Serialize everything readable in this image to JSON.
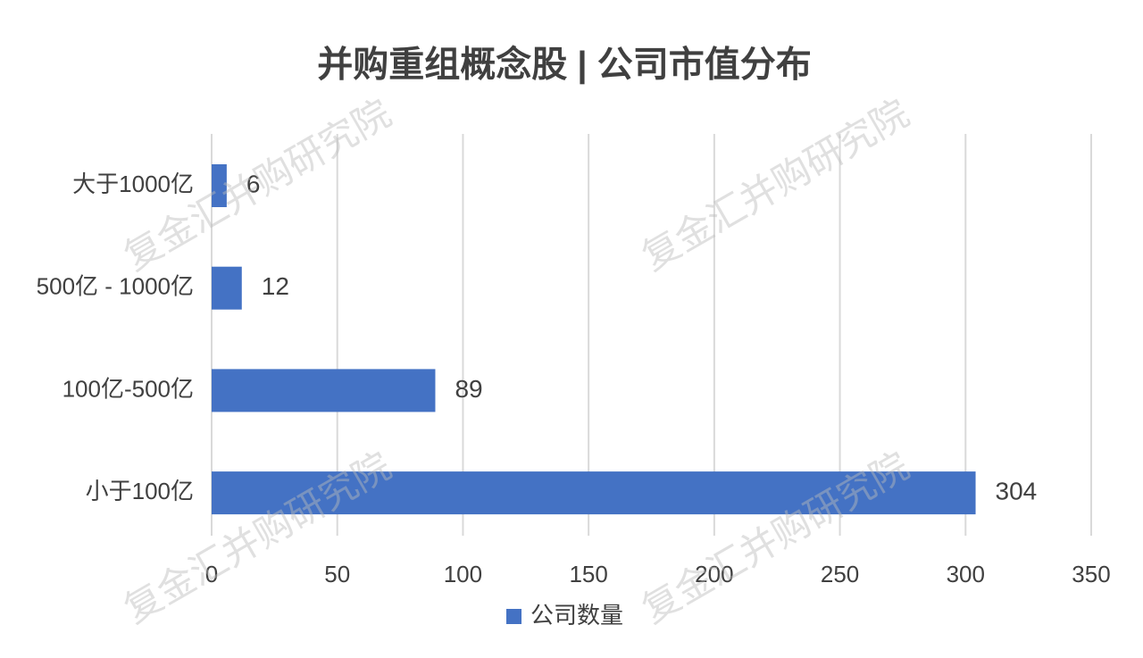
{
  "chart_data": {
    "type": "hbar",
    "title": "并购重组概念股 | 公司市值分布",
    "categories": [
      "大于1000亿",
      "500亿 - 1000亿",
      "100亿-500亿",
      "小于100亿"
    ],
    "series": [
      {
        "name": "公司数量",
        "color": "#4472c4",
        "values": [
          6,
          12,
          89,
          304
        ]
      }
    ],
    "xlim": [
      0,
      350
    ],
    "xticks": [
      0,
      50,
      100,
      150,
      200,
      250,
      300,
      350
    ],
    "grid": true,
    "legend": "bottom",
    "watermark": "复金汇并购研究院"
  }
}
